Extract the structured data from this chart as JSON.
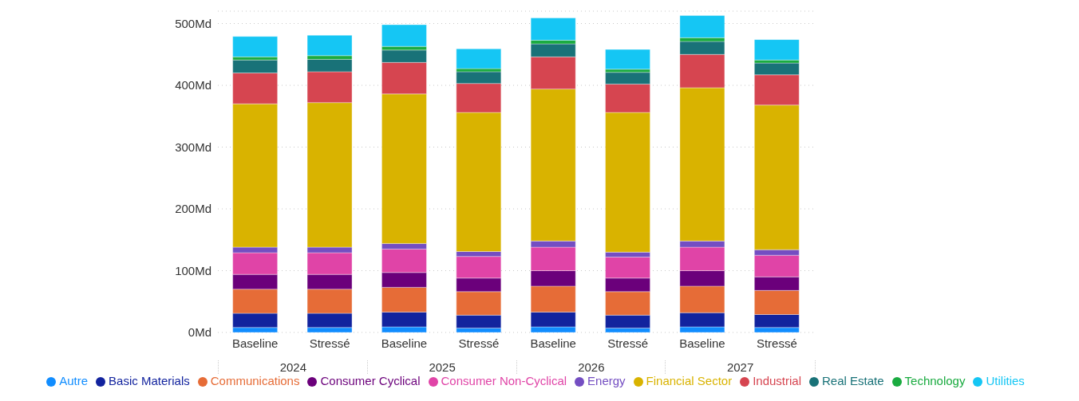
{
  "chart_data": {
    "type": "bar",
    "stacked": true,
    "categories": [
      "Baseline",
      "Stressé",
      "Baseline",
      "Stressé",
      "Baseline",
      "Stressé",
      "Baseline",
      "Stressé"
    ],
    "annotations": [
      "2024",
      "2025",
      "2026",
      "2027"
    ],
    "series": [
      {
        "name": "Autre",
        "color": "#118dff",
        "values": [
          8,
          8,
          9,
          7,
          9,
          7,
          9,
          8
        ]
      },
      {
        "name": "Basic Materials",
        "color": "#12239e",
        "values": [
          23,
          23,
          24,
          21,
          24,
          21,
          23,
          21
        ]
      },
      {
        "name": "Communications",
        "color": "#e66c37",
        "values": [
          39,
          39,
          40,
          38,
          42,
          38,
          43,
          39
        ]
      },
      {
        "name": "Consumer Cyclical",
        "color": "#6b007b",
        "values": [
          24,
          24,
          24,
          22,
          25,
          22,
          25,
          22
        ]
      },
      {
        "name": "Consumer Non-Cyclical",
        "color": "#e044a7",
        "values": [
          35,
          35,
          38,
          35,
          38,
          34,
          38,
          35
        ]
      },
      {
        "name": "Energy",
        "color": "#744ec2",
        "values": [
          9,
          9,
          9,
          8,
          10,
          8,
          10,
          9
        ]
      },
      {
        "name": "Financial Sector",
        "color": "#d9b300",
        "values": [
          232,
          234,
          242,
          225,
          246,
          226,
          248,
          234
        ]
      },
      {
        "name": "Industrial",
        "color": "#d64550",
        "values": [
          50,
          50,
          51,
          47,
          52,
          46,
          54,
          49
        ]
      },
      {
        "name": "Real Estate",
        "color": "#197278",
        "values": [
          21,
          20,
          20,
          19,
          21,
          19,
          21,
          19
        ]
      },
      {
        "name": "Technology",
        "color": "#1aab40",
        "values": [
          5,
          6,
          6,
          5,
          6,
          5,
          6,
          5
        ]
      },
      {
        "name": "Utilities",
        "color": "#15c6f4",
        "values": [
          33,
          33,
          35,
          32,
          36,
          32,
          36,
          33
        ]
      }
    ],
    "ylim": [
      0,
      520
    ],
    "yticks": [
      {
        "value": 0,
        "label": "0Md"
      },
      {
        "value": 100,
        "label": "100Md"
      },
      {
        "value": 200,
        "label": "200Md"
      },
      {
        "value": 300,
        "label": "300Md"
      },
      {
        "value": 400,
        "label": "400Md"
      },
      {
        "value": 500,
        "label": "500Md"
      }
    ],
    "grid": "y",
    "legend": "bottom"
  }
}
